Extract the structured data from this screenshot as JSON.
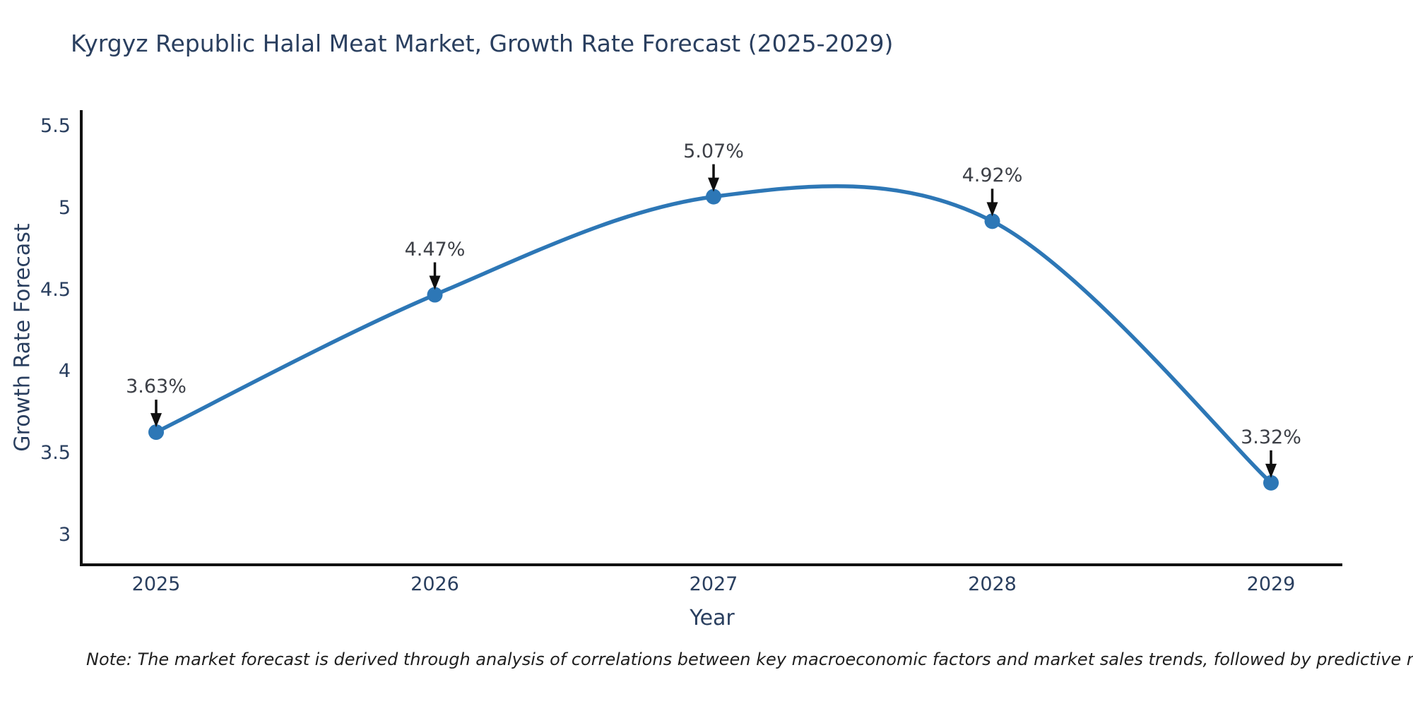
{
  "chart_data": {
    "type": "line",
    "line_shape": "spline",
    "title": "Kyrgyz Republic Halal Meat Market, Growth Rate Forecast (2025-2029)",
    "xlabel": "Year",
    "ylabel": "Growth Rate Forecast",
    "categories": [
      "2025",
      "2026",
      "2027",
      "2028",
      "2029"
    ],
    "values": [
      3.63,
      4.47,
      5.07,
      4.92,
      3.32
    ],
    "point_labels": [
      "3.63%",
      "4.47%",
      "5.07%",
      "4.92%",
      "3.32%"
    ],
    "y_tick_labels": [
      "5.5",
      "5",
      "4.5",
      "4",
      "3.5",
      "3"
    ],
    "y_tick_values": [
      5.5,
      5,
      4.5,
      4,
      3.5,
      3
    ],
    "ylim": [
      2.82,
      5.59
    ],
    "grid": false,
    "legend": "none",
    "colors": {
      "line": "#2d77b6",
      "marker": "#2d77b6",
      "axis": "#111111",
      "title_text": "#2a3f5f",
      "tick_text": "#2a3f5f",
      "annotation_text": "#3d4047",
      "annotation_arrow": "#0f0f0f",
      "background": "#ffffff"
    },
    "note": "Note: The market forecast is derived through analysis of correlations between key macroeconomic factors and market sales trends, followed by predictive modeling to project future sales"
  }
}
